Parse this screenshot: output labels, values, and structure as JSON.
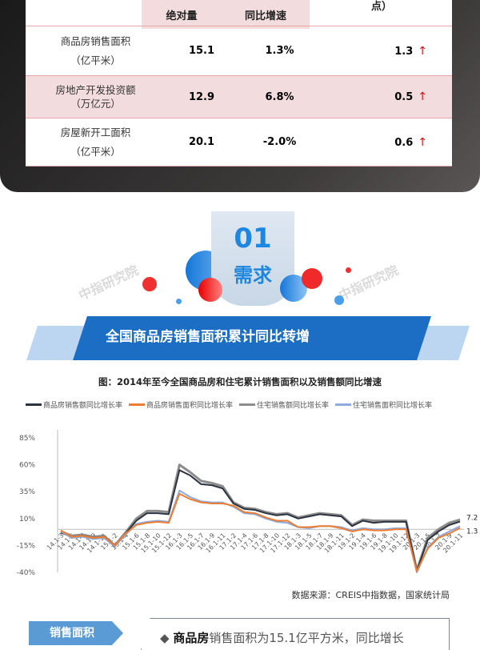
{
  "table": {
    "headers": [
      "绝对量",
      "同比增速",
      "点）"
    ],
    "rows": [
      {
        "name": "商品房销售面积",
        "unit": "（亿平米）",
        "value": "15.1",
        "growth": "1.3%",
        "change": "1.3",
        "dir": "↑"
      },
      {
        "name": "房地产开发投资额",
        "unit": "（万亿元）",
        "value": "12.9",
        "growth": "6.8%",
        "change": "0.5",
        "dir": "↑"
      },
      {
        "name": "房屋新开工面积",
        "unit": "（亿平米）",
        "value": "20.1",
        "growth": "-2.0%",
        "change": "0.6",
        "dir": "↑"
      }
    ]
  },
  "section": {
    "number": "01",
    "label": "需求",
    "banner": "全国商品房销售面积累计同比转增"
  },
  "watermark": "中指研究院",
  "chart_data": {
    "type": "line",
    "title": "图：2014年至今全国商品房和住宅累计销售面积以及销售额同比增速",
    "ylim": [
      -40,
      85
    ],
    "yticks": [
      "85%",
      "60%",
      "35%",
      "10%",
      "-15%",
      "-40%"
    ],
    "ytick_values": [
      85,
      60,
      35,
      10,
      -15,
      -40
    ],
    "categories": [
      "14.1-3",
      "14.1-5",
      "14.1-7",
      "14.1-9",
      "14.1-11",
      "15.1-2",
      "15.1-4",
      "15.1-6",
      "15.1-8",
      "15.1-10",
      "15.1-12",
      "16.1-3",
      "16.1-5",
      "16.1-7",
      "16.1-9",
      "16.1-11",
      "17.1-2",
      "17.1-4",
      "17.1-6",
      "17.1-8",
      "17.1-10",
      "17.1-12",
      "18.1-3",
      "18.1-5",
      "18.1-7",
      "18.1-9",
      "18.1-11",
      "19.1-2",
      "19.1-4",
      "19.1-6",
      "19.1-8",
      "19.1-10",
      "19.1-12",
      "20.1-3",
      "20.1-5",
      "20.1-7",
      "20.1-9",
      "20.1-11"
    ],
    "series": [
      {
        "name": "商品房销售额同比增长率",
        "color": "#2b3240",
        "values": [
          -3,
          -7,
          -6,
          -8,
          -7,
          -16,
          -4,
          8,
          15,
          15,
          14,
          55,
          50,
          42,
          41,
          38,
          24,
          19,
          18,
          15,
          13,
          14,
          10,
          12,
          14,
          13,
          12,
          3,
          8,
          6,
          7,
          7,
          7,
          -39,
          -10,
          -2,
          4,
          7.2
        ]
      },
      {
        "name": "商品房销售面积同比增长率",
        "color": "#ed7d31",
        "values": [
          -1,
          -7,
          -6,
          -8,
          -7,
          -15,
          -4,
          4,
          6,
          7,
          6,
          33,
          28,
          25,
          24,
          24,
          22,
          16,
          15,
          11,
          8,
          8,
          2,
          2,
          3,
          3,
          1,
          -2,
          0,
          -1,
          -1,
          0,
          0,
          -39,
          -18,
          -8,
          -4,
          1.3
        ]
      },
      {
        "name": "住宅销售额同比增长率",
        "color": "#8c8c8c",
        "values": [
          -2,
          -6,
          -5,
          -7,
          -6,
          -15,
          -3,
          10,
          17,
          17,
          16,
          60,
          53,
          45,
          43,
          40,
          25,
          20,
          19,
          16,
          14,
          15,
          11,
          13,
          15,
          14,
          13,
          4,
          9,
          8,
          8,
          8,
          8,
          -38,
          -8,
          0,
          6,
          9
        ]
      },
      {
        "name": "住宅销售面积同比增长率",
        "color": "#8faadc",
        "values": [
          -2,
          -8,
          -7,
          -9,
          -8,
          -16,
          -5,
          5,
          7,
          8,
          7,
          36,
          30,
          26,
          25,
          25,
          21,
          15,
          14,
          10,
          7,
          6,
          2,
          1,
          3,
          3,
          2,
          -1,
          1,
          0,
          0,
          1,
          1,
          -40,
          -17,
          -7,
          -2,
          3
        ]
      }
    ],
    "end_labels": [
      "7.2",
      "1.3"
    ],
    "grid": false,
    "legend": "top"
  },
  "source": "数据来源：CREIS中指数据，国家统计局",
  "bottom": {
    "tab": "销售面积",
    "bullet": "◆ ",
    "bold": "商品房",
    "text": "销售面积为15.1亿平方米，同比增长"
  }
}
